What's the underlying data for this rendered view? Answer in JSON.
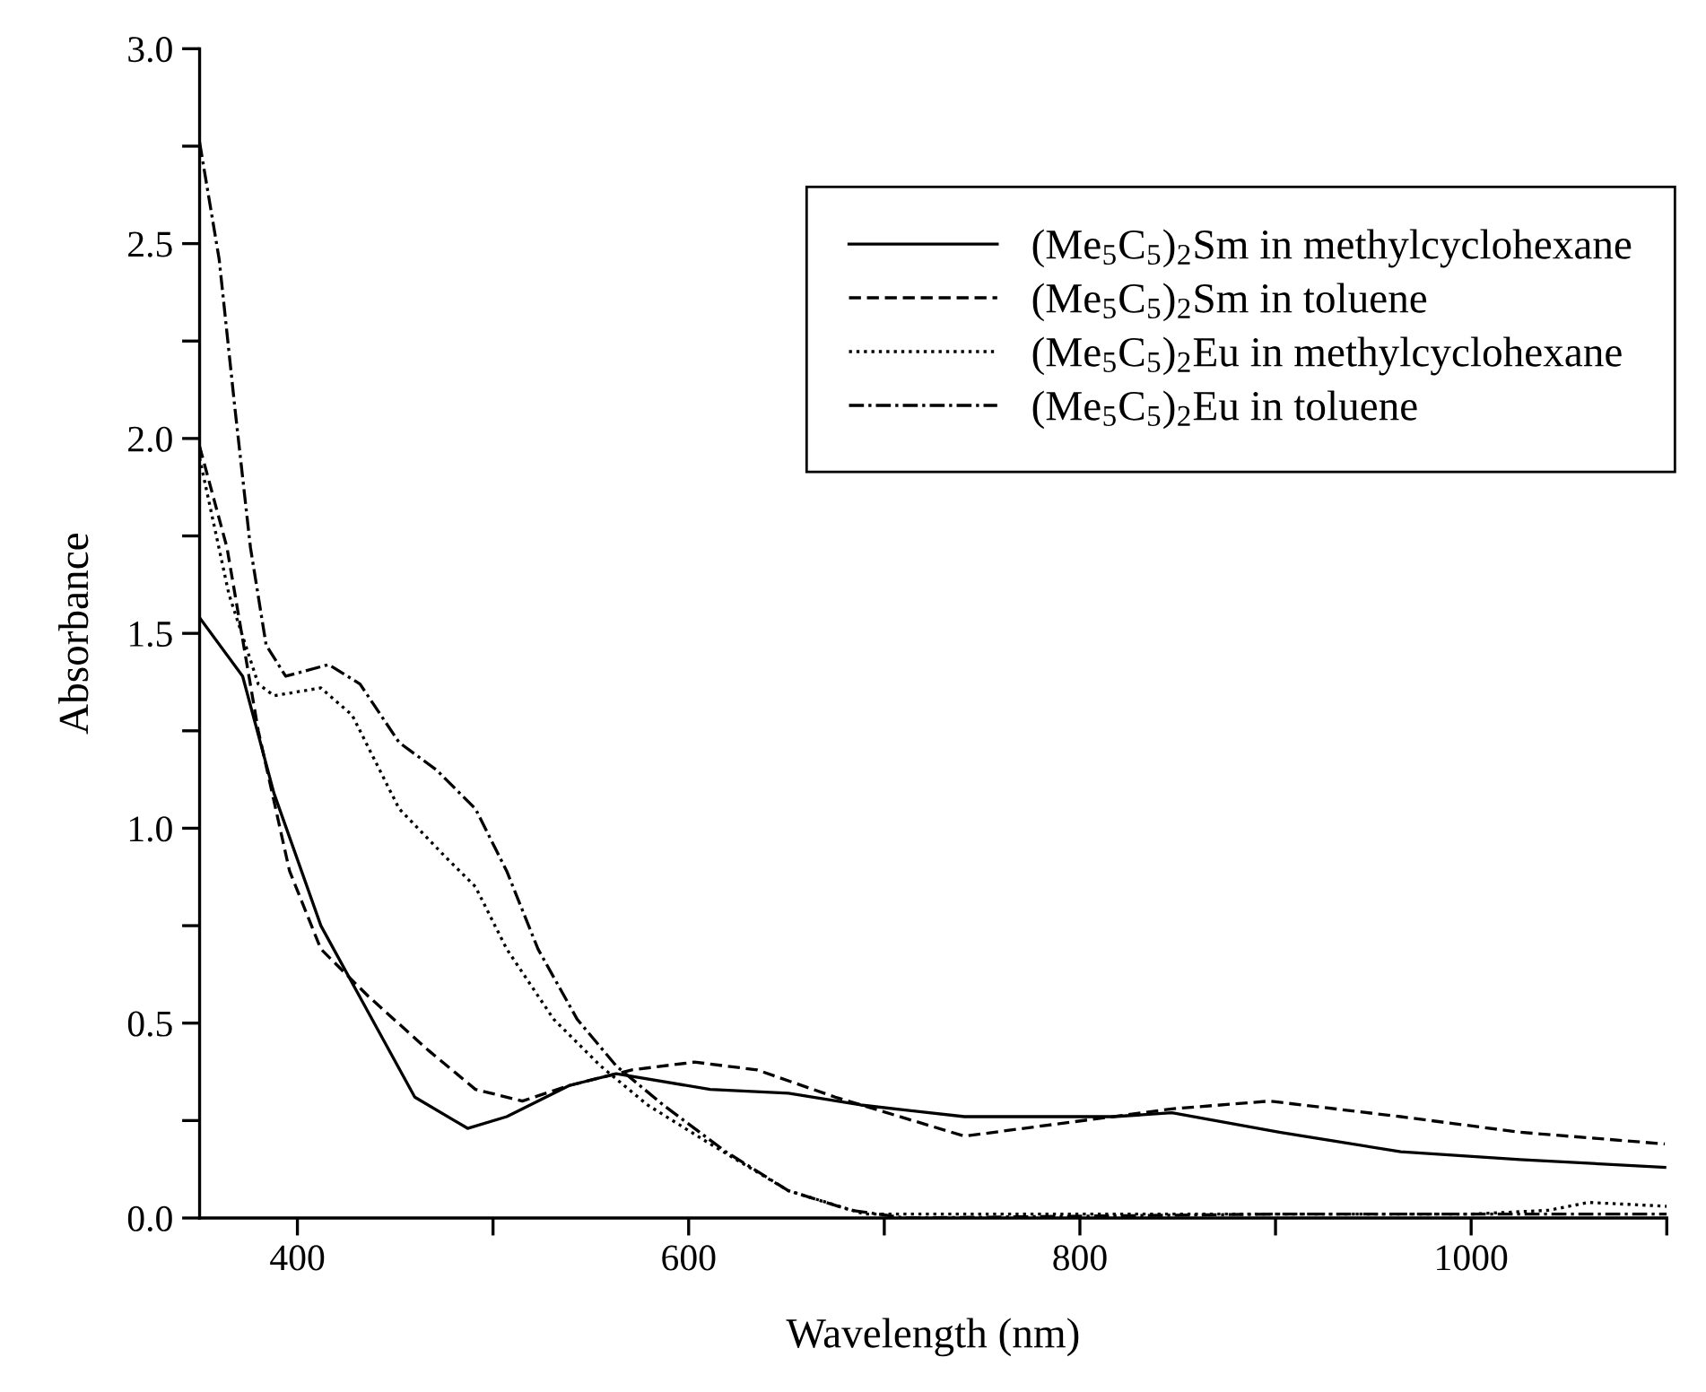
{
  "chart_data": {
    "type": "line",
    "xlabel": "Wavelength (nm)",
    "ylabel": "Absorbance",
    "xlim": [
      350,
      1100
    ],
    "ylim": [
      0,
      3.0
    ],
    "xticks": [
      400,
      {
        "value": 500,
        "label": null
      },
      600,
      {
        "value": 700,
        "label": null
      },
      800,
      {
        "value": 900,
        "label": null
      },
      1000,
      {
        "value": 1100,
        "label": null
      }
    ],
    "yticks": [
      {
        "value": 0,
        "label": "0.0"
      },
      {
        "value": 0.25,
        "label": null
      },
      0.5,
      {
        "value": 0.75,
        "label": null
      },
      {
        "value": 1,
        "label": "1.0"
      },
      {
        "value": 1.25,
        "label": null
      },
      1.5,
      {
        "value": 1.75,
        "label": null
      },
      {
        "value": 2,
        "label": "2.0"
      },
      {
        "value": 2.25,
        "label": null
      },
      2.5,
      {
        "value": 2.75,
        "label": null
      },
      {
        "value": 3,
        "label": "3.0"
      }
    ],
    "grid": false,
    "legend": "top right",
    "marker": "none",
    "series": [
      {
        "name": "(Me$_{5}$C$_{5}$)$_{2}$Sm in methylcyclohexane",
        "color": "#000000",
        "line_style": "solid",
        "x": [
          350,
          372,
          388,
          412,
          436,
          460,
          487,
          507,
          539,
          563,
          611,
          651,
          688,
          741,
          817,
          847,
          902,
          964,
          1025,
          1099
        ],
        "values": [
          1.54,
          1.39,
          1.09,
          0.75,
          0.53,
          0.31,
          0.23,
          0.26,
          0.34,
          0.37,
          0.33,
          0.32,
          0.29,
          0.26,
          0.26,
          0.27,
          0.22,
          0.17,
          0.15,
          0.13
        ]
      },
      {
        "name": "(Me$_{5}$C$_{5}$)$_{2}$Sm in toluene",
        "color": "#000000",
        "line_style": "dashed",
        "x": [
          350,
          364,
          380,
          396,
          412,
          436,
          467,
          491,
          515,
          539,
          571,
          603,
          635,
          675,
          741,
          847,
          897,
          964,
          1025,
          1099
        ],
        "values": [
          1.98,
          1.72,
          1.25,
          0.89,
          0.69,
          0.57,
          0.43,
          0.33,
          0.3,
          0.34,
          0.38,
          0.4,
          0.38,
          0.31,
          0.21,
          0.28,
          0.3,
          0.26,
          0.22,
          0.19
        ]
      },
      {
        "name": "(Me$_{5}$C$_{5}$)$_{2}$Eu in methylcyclohexane",
        "color": "#000000",
        "line_style": "dotted",
        "x": [
          350,
          365,
          380,
          388,
          412,
          428,
          452,
          475,
          491,
          507,
          531,
          555,
          579,
          611,
          651,
          690,
          800,
          1000,
          1040,
          1060,
          1100
        ],
        "values": [
          1.95,
          1.6,
          1.37,
          1.34,
          1.36,
          1.29,
          1.05,
          0.93,
          0.85,
          0.69,
          0.51,
          0.39,
          0.29,
          0.19,
          0.07,
          0.01,
          0.01,
          0.01,
          0.02,
          0.04,
          0.03
        ]
      },
      {
        "name": "(Me$_{5}$C$_{5}$)$_{2}$Eu in toluene",
        "color": "#000000",
        "line_style": "dashdot",
        "x": [
          350,
          360,
          368,
          376,
          384,
          394,
          416,
          432,
          452,
          471,
          491,
          507,
          523,
          543,
          563,
          587,
          619,
          651,
          683,
          711,
          900,
          1100
        ],
        "values": [
          2.76,
          2.46,
          2.08,
          1.72,
          1.47,
          1.39,
          1.42,
          1.37,
          1.22,
          1.15,
          1.05,
          0.89,
          0.69,
          0.51,
          0.39,
          0.29,
          0.17,
          0.07,
          0.02,
          0.0,
          0.01,
          0.01
        ]
      }
    ]
  }
}
